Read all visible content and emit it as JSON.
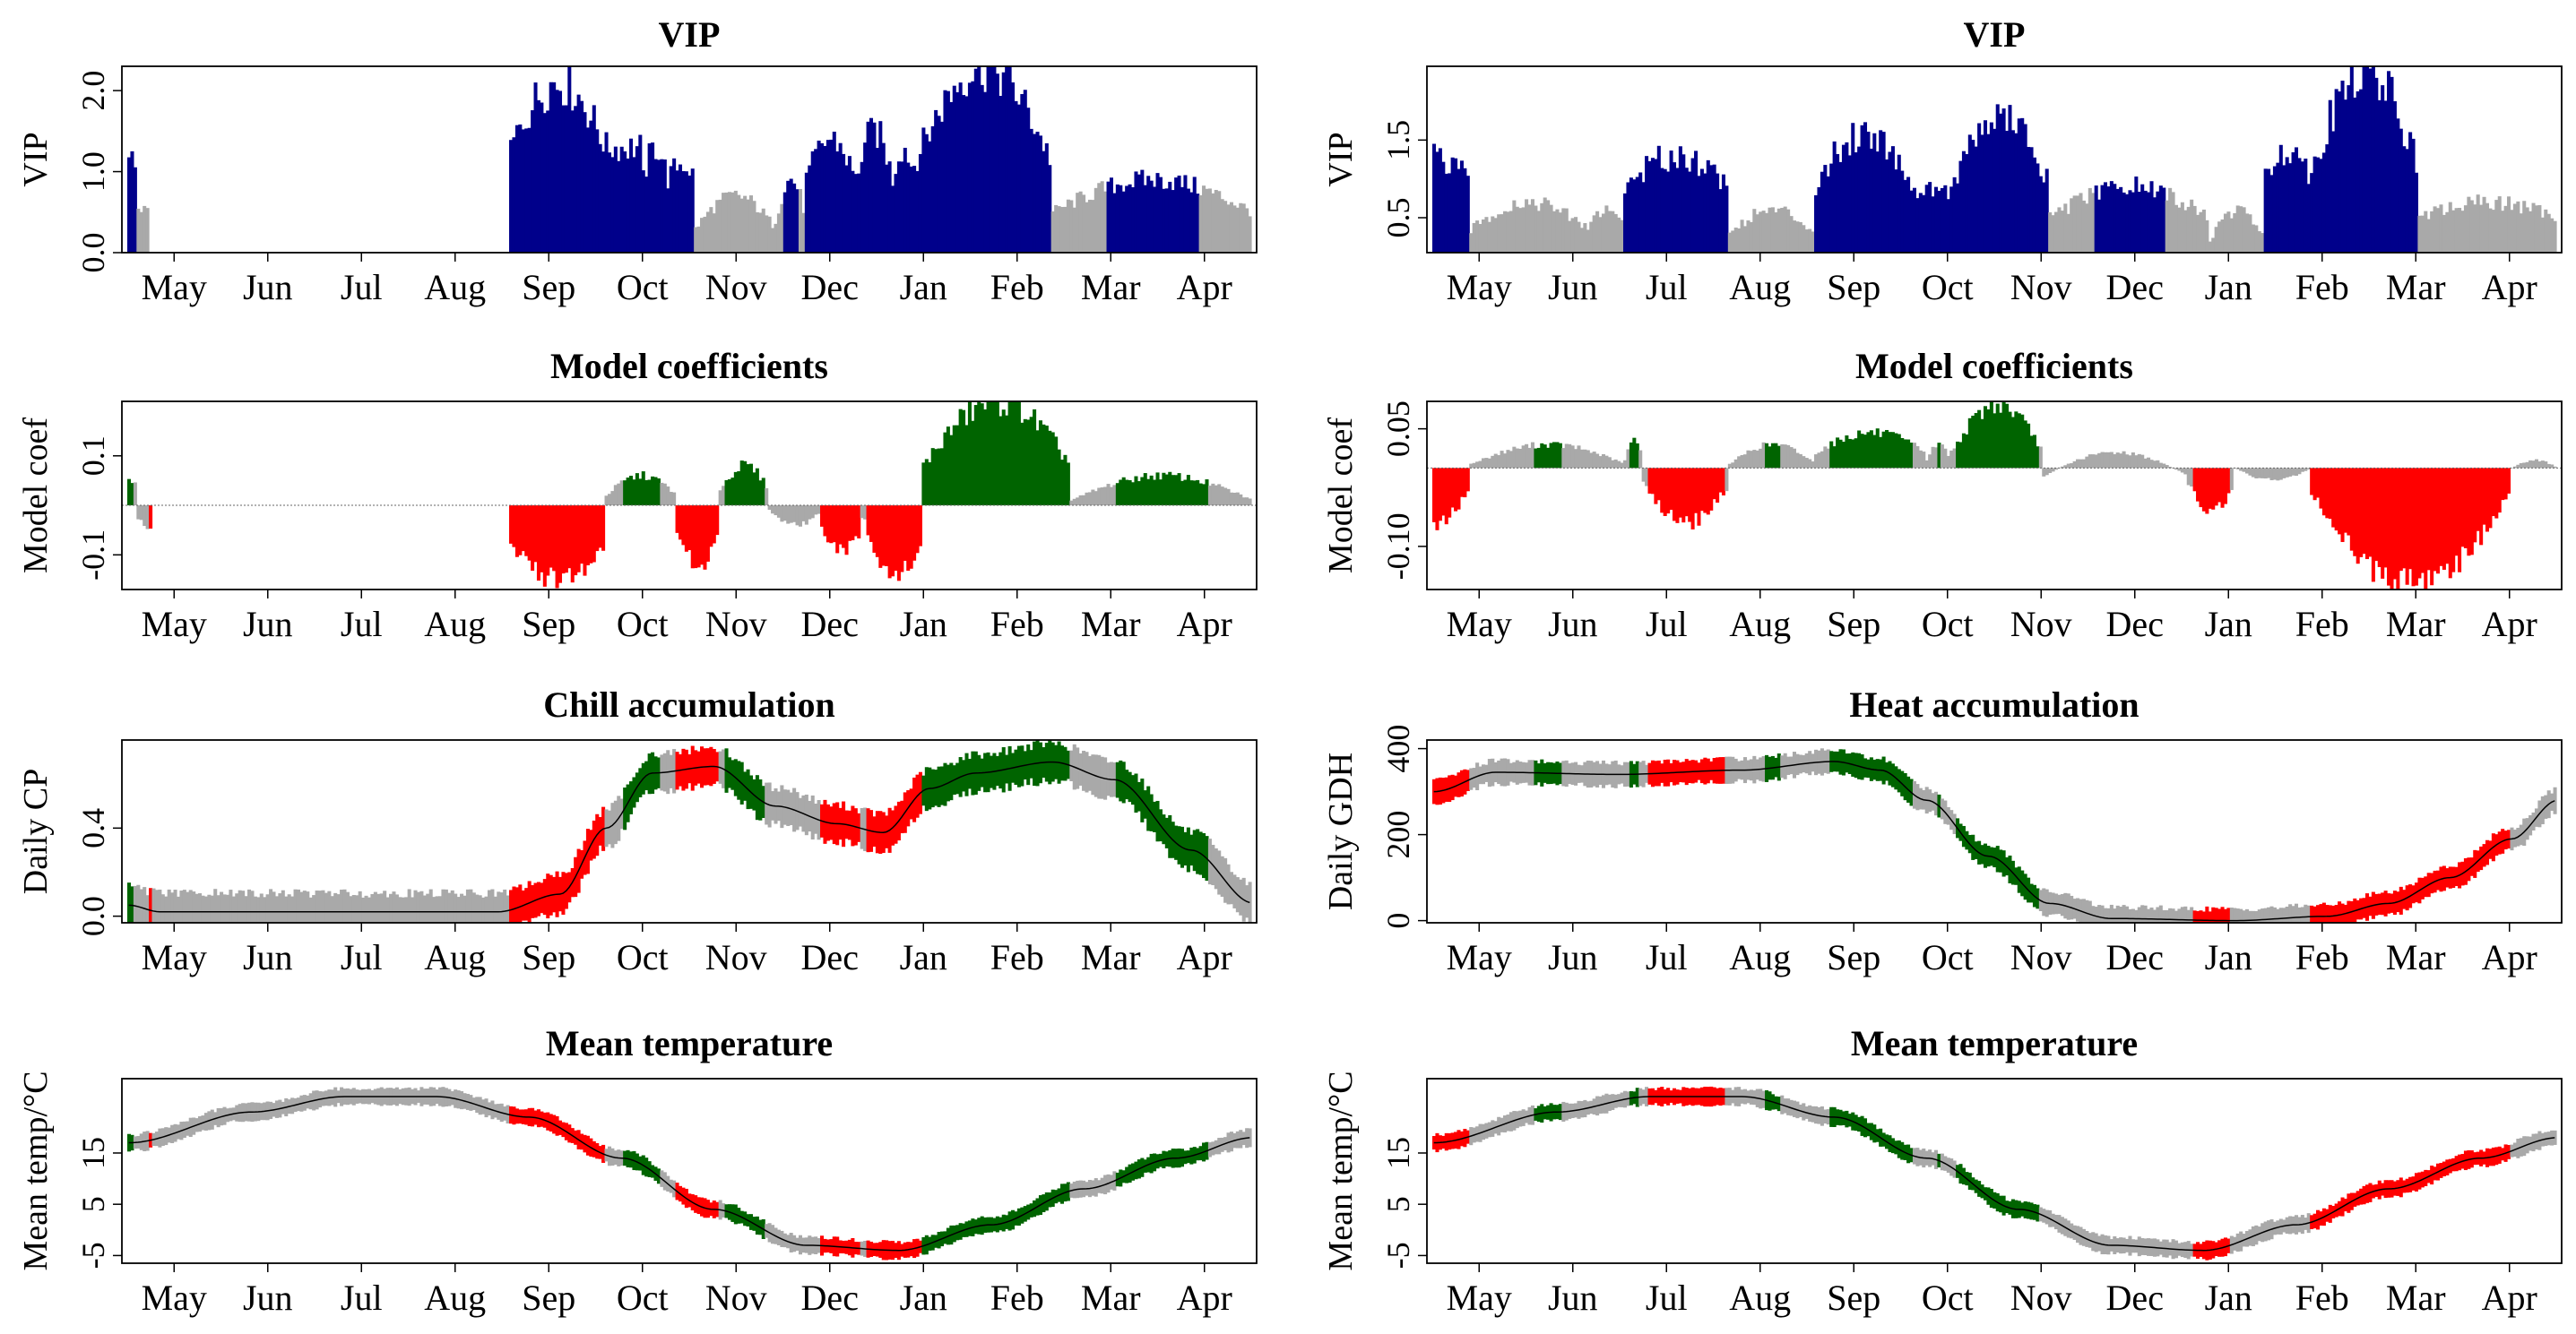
{
  "figure": {
    "months": [
      "May",
      "Jun",
      "Jul",
      "Aug",
      "Sep",
      "Oct",
      "Nov",
      "Dec",
      "Jan",
      "Feb",
      "Mar",
      "Apr"
    ],
    "colors": {
      "important_positive": "#006400",
      "important_negative": "#ff0000",
      "vip_important": "#00008b",
      "unimportant": "#a9a9a9",
      "mean_line": "#000000"
    }
  },
  "chart_data": [
    {
      "id": "left-vip",
      "type": "bar",
      "title": "VIP",
      "ylabel": "VIP",
      "ylim": [
        0,
        2.3
      ],
      "yticks": [
        "0.0",
        "1.0",
        "2.0"
      ],
      "ytick_values": [
        0,
        1,
        2
      ],
      "threshold": 0.8,
      "segments": [
        {
          "from": 0,
          "to": 3,
          "shape": "ramp",
          "a": 1.3,
          "b": 0.9
        },
        {
          "from": 3,
          "to": 7,
          "shape": "flat",
          "a": 0.55,
          "b": 0.5
        },
        {
          "from": 124,
          "to": 155,
          "shape": "bump",
          "a": 1.3,
          "b": 2.1
        },
        {
          "from": 155,
          "to": 167,
          "shape": "bump",
          "a": 1.3,
          "b": 1.3
        },
        {
          "from": 167,
          "to": 175,
          "shape": "bump",
          "a": 0.9,
          "b": 1.3
        },
        {
          "from": 175,
          "to": 184,
          "shape": "bump",
          "a": 0.9,
          "b": 1.1
        },
        {
          "from": 184,
          "to": 210,
          "shape": "bump",
          "a": 0.3,
          "b": 0.7
        },
        {
          "from": 210,
          "to": 220,
          "shape": "bump",
          "a": 0.4,
          "b": 0.9
        },
        {
          "from": 220,
          "to": 236,
          "shape": "bump",
          "a": 0.9,
          "b": 1.4
        },
        {
          "from": 236,
          "to": 248,
          "shape": "bump",
          "a": 0.9,
          "b": 1.5
        },
        {
          "from": 248,
          "to": 255,
          "shape": "bump",
          "a": 0.9,
          "b": 1.3
        },
        {
          "from": 255,
          "to": 300,
          "shape": "bump",
          "a": 1.1,
          "b": 2.3
        },
        {
          "from": 300,
          "to": 365,
          "shape": "bump",
          "a": 0.5,
          "b": 0.9
        }
      ]
    },
    {
      "id": "left-coef",
      "type": "bar",
      "title": "Model coefficients",
      "ylabel": "Model coef",
      "ylim": [
        -0.17,
        0.21
      ],
      "yticks": [
        "-0.1",
        "0.1"
      ],
      "ytick_values": [
        -0.1,
        0.1
      ],
      "zero_line": true,
      "segments": [
        {
          "from": 0,
          "to": 3,
          "shape": "flat",
          "a": 0.05,
          "b": 0.04
        },
        {
          "from": 3,
          "to": 8,
          "shape": "flat",
          "a": -0.03,
          "b": -0.05
        },
        {
          "from": 124,
          "to": 155,
          "shape": "bump",
          "a": -0.08,
          "b": -0.15
        },
        {
          "from": 155,
          "to": 178,
          "shape": "bump",
          "a": 0.02,
          "b": 0.06
        },
        {
          "from": 178,
          "to": 192,
          "shape": "bump",
          "a": -0.05,
          "b": -0.12
        },
        {
          "from": 192,
          "to": 208,
          "shape": "bump",
          "a": 0.03,
          "b": 0.08
        },
        {
          "from": 208,
          "to": 225,
          "shape": "bump",
          "a": -0.01,
          "b": -0.04
        },
        {
          "from": 225,
          "to": 238,
          "shape": "bump",
          "a": -0.05,
          "b": -0.09
        },
        {
          "from": 238,
          "to": 240,
          "shape": "flat",
          "a": -0.03,
          "b": -0.02
        },
        {
          "from": 240,
          "to": 258,
          "shape": "bump",
          "a": -0.07,
          "b": -0.14
        },
        {
          "from": 258,
          "to": 306,
          "shape": "bump",
          "a": 0.08,
          "b": 0.21
        },
        {
          "from": 306,
          "to": 365,
          "shape": "bump",
          "a": 0.01,
          "b": 0.06
        }
      ]
    },
    {
      "id": "left-chill",
      "type": "area",
      "title": "Chill accumulation",
      "ylabel": "Daily CP",
      "ylim": [
        -0.03,
        0.8
      ],
      "yticks": [
        "0.0",
        "0.4"
      ],
      "ytick_values": [
        0,
        0.4
      ],
      "series": "chill",
      "mean_knots": [
        [
          0,
          0.05
        ],
        [
          10,
          0.02
        ],
        [
          120,
          0.02
        ],
        [
          140,
          0.1
        ],
        [
          155,
          0.4
        ],
        [
          170,
          0.65
        ],
        [
          190,
          0.68
        ],
        [
          210,
          0.5
        ],
        [
          230,
          0.42
        ],
        [
          245,
          0.38
        ],
        [
          260,
          0.58
        ],
        [
          275,
          0.65
        ],
        [
          300,
          0.7
        ],
        [
          320,
          0.62
        ],
        [
          345,
          0.3
        ],
        [
          365,
          0.06
        ]
      ],
      "spread": 0.08
    },
    {
      "id": "left-temp",
      "type": "area",
      "title": "Mean temperature",
      "ylabel": "Mean temp/°C",
      "ylim": [
        -6.5,
        29.5
      ],
      "yticks": [
        "-5",
        "5",
        "15"
      ],
      "ytick_values": [
        -5,
        5,
        15
      ],
      "series": "temp",
      "mean_knots": [
        [
          0,
          17
        ],
        [
          40,
          23
        ],
        [
          70,
          26
        ],
        [
          100,
          26
        ],
        [
          130,
          22
        ],
        [
          160,
          14
        ],
        [
          190,
          4
        ],
        [
          220,
          -3
        ],
        [
          250,
          -4
        ],
        [
          280,
          1
        ],
        [
          310,
          8
        ],
        [
          340,
          14
        ],
        [
          365,
          18
        ]
      ],
      "spread": 1.5
    },
    {
      "id": "right-vip",
      "type": "bar",
      "title": "VIP",
      "ylabel": "VIP",
      "ylim": [
        0.05,
        2.45
      ],
      "yticks": [
        "0.5",
        "1.5"
      ],
      "ytick_values": [
        0.5,
        1.5
      ],
      "threshold": 0.8,
      "segments": [
        {
          "from": 0,
          "to": 12,
          "shape": "ramp",
          "a": 1.3,
          "b": 1.0
        },
        {
          "from": 12,
          "to": 50,
          "shape": "bump",
          "a": 0.35,
          "b": 0.7
        },
        {
          "from": 50,
          "to": 62,
          "shape": "bump",
          "a": 0.4,
          "b": 0.6
        },
        {
          "from": 62,
          "to": 96,
          "shape": "bump",
          "a": 0.9,
          "b": 1.3
        },
        {
          "from": 96,
          "to": 124,
          "shape": "bump",
          "a": 0.3,
          "b": 0.6
        },
        {
          "from": 124,
          "to": 156,
          "shape": "bump",
          "a": 0.9,
          "b": 1.6
        },
        {
          "from": 156,
          "to": 168,
          "shape": "bump",
          "a": 0.8,
          "b": 0.9
        },
        {
          "from": 168,
          "to": 200,
          "shape": "bump",
          "a": 0.9,
          "b": 1.8
        },
        {
          "from": 200,
          "to": 252,
          "shape": "bump",
          "a": 0.5,
          "b": 0.9
        },
        {
          "from": 252,
          "to": 270,
          "shape": "bump",
          "a": 0.2,
          "b": 0.6
        },
        {
          "from": 270,
          "to": 285,
          "shape": "bump",
          "a": 1.0,
          "b": 1.4
        },
        {
          "from": 285,
          "to": 320,
          "shape": "bump",
          "a": 1.1,
          "b": 2.4
        },
        {
          "from": 320,
          "to": 365,
          "shape": "bump",
          "a": 0.5,
          "b": 0.7
        }
      ]
    },
    {
      "id": "right-coef",
      "type": "bar",
      "title": "Model coefficients",
      "ylabel": "Model coef",
      "ylim": [
        -0.155,
        0.085
      ],
      "yticks": [
        "-0.10",
        "0.05"
      ],
      "ytick_values": [
        -0.1,
        0.05
      ],
      "zero_line": true,
      "segments": [
        {
          "from": 0,
          "to": 12,
          "shape": "ramp",
          "a": -0.08,
          "b": -0.03
        },
        {
          "from": 12,
          "to": 62,
          "shape": "bump",
          "a": 0.005,
          "b": 0.03
        },
        {
          "from": 62,
          "to": 68,
          "shape": "bump",
          "a": 0.01,
          "b": 0.035
        },
        {
          "from": 68,
          "to": 96,
          "shape": "bump",
          "a": -0.02,
          "b": -0.07
        },
        {
          "from": 96,
          "to": 124,
          "shape": "bump",
          "a": 0.005,
          "b": 0.03
        },
        {
          "from": 124,
          "to": 160,
          "shape": "bump",
          "a": 0.02,
          "b": 0.045
        },
        {
          "from": 160,
          "to": 168,
          "shape": "bump",
          "a": 0.01,
          "b": 0.03
        },
        {
          "from": 168,
          "to": 198,
          "shape": "bump",
          "a": 0.02,
          "b": 0.08
        },
        {
          "from": 198,
          "to": 245,
          "shape": "bump",
          "a": -0.01,
          "b": 0.02
        },
        {
          "from": 245,
          "to": 260,
          "shape": "bump",
          "a": -0.02,
          "b": -0.055
        },
        {
          "from": 260,
          "to": 285,
          "shape": "bump",
          "a": 0.0,
          "b": -0.015
        },
        {
          "from": 285,
          "to": 350,
          "shape": "bump",
          "a": -0.03,
          "b": -0.15
        },
        {
          "from": 350,
          "to": 365,
          "shape": "bump",
          "a": 0.0,
          "b": 0.01
        }
      ]
    },
    {
      "id": "right-heat",
      "type": "area",
      "title": "Heat accumulation",
      "ylabel": "Daily GDH",
      "ylim": [
        -5,
        420
      ],
      "yticks": [
        "0",
        "200",
        "400"
      ],
      "ytick_values": [
        0,
        200,
        400
      ],
      "series": "heat",
      "mean_knots": [
        [
          0,
          300
        ],
        [
          20,
          345
        ],
        [
          60,
          340
        ],
        [
          100,
          350
        ],
        [
          130,
          370
        ],
        [
          145,
          350
        ],
        [
          160,
          280
        ],
        [
          180,
          150
        ],
        [
          200,
          40
        ],
        [
          220,
          5
        ],
        [
          260,
          0
        ],
        [
          290,
          10
        ],
        [
          310,
          40
        ],
        [
          330,
          100
        ],
        [
          350,
          190
        ],
        [
          365,
          280
        ]
      ],
      "spread": 25
    },
    {
      "id": "right-temp",
      "type": "area",
      "title": "Mean temperature",
      "ylabel": "Mean temp/°C",
      "ylim": [
        -6.5,
        29.5
      ],
      "yticks": [
        "-5",
        "5",
        "15"
      ],
      "ytick_values": [
        -5,
        5,
        15
      ],
      "series": "temp",
      "mean_knots": [
        [
          0,
          17
        ],
        [
          40,
          23
        ],
        [
          70,
          26
        ],
        [
          100,
          26
        ],
        [
          130,
          22
        ],
        [
          160,
          14
        ],
        [
          190,
          4
        ],
        [
          220,
          -3
        ],
        [
          250,
          -4
        ],
        [
          280,
          1
        ],
        [
          310,
          8
        ],
        [
          340,
          14
        ],
        [
          365,
          18
        ]
      ],
      "spread": 1.5
    }
  ]
}
